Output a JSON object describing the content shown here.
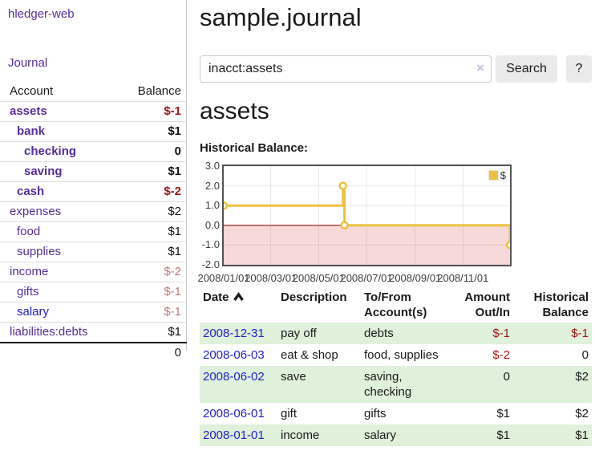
{
  "app": {
    "title": "hledger-web"
  },
  "sidebar": {
    "journal_link": "Journal",
    "headers": {
      "account": "Account",
      "balance": "Balance"
    },
    "accounts": [
      {
        "label": "assets",
        "balance": "$-1",
        "depth": 1,
        "emph": true,
        "balance_color": "negative-strong",
        "link_color": "purple"
      },
      {
        "label": "bank",
        "balance": "$1",
        "depth": 2,
        "emph": true,
        "balance_color": "normal",
        "link_color": "purple"
      },
      {
        "label": "checking",
        "balance": "0",
        "depth": 3,
        "emph": true,
        "balance_color": "normal",
        "link_color": "purple"
      },
      {
        "label": "saving",
        "balance": "$1",
        "depth": 3,
        "emph": true,
        "balance_color": "normal",
        "link_color": "purple"
      },
      {
        "label": "cash",
        "balance": "$-2",
        "depth": 2,
        "emph": true,
        "balance_color": "negative-strong",
        "link_color": "purple"
      },
      {
        "label": "expenses",
        "balance": "$2",
        "depth": 1,
        "emph": false,
        "balance_color": "normal",
        "link_color": "purple"
      },
      {
        "label": "food",
        "balance": "$1",
        "depth": 2,
        "emph": false,
        "balance_color": "normal",
        "link_color": "purple"
      },
      {
        "label": "supplies",
        "balance": "$1",
        "depth": 2,
        "emph": false,
        "balance_color": "normal",
        "link_color": "purple"
      },
      {
        "label": "income",
        "balance": "$-2",
        "depth": 1,
        "emph": false,
        "balance_color": "negative-muted",
        "link_color": "purple"
      },
      {
        "label": "gifts",
        "balance": "$-1",
        "depth": 2,
        "emph": false,
        "balance_color": "negative-muted",
        "link_color": "purple"
      },
      {
        "label": "salary",
        "balance": "$-1",
        "depth": 2,
        "emph": false,
        "balance_color": "negative-muted",
        "link_color": "blue"
      },
      {
        "label": "liabilities:debts",
        "balance": "$1",
        "depth": 1,
        "emph": false,
        "balance_color": "normal",
        "link_color": "purple"
      }
    ],
    "total": "0"
  },
  "main": {
    "title": "sample.journal",
    "search": {
      "value": "inacct:assets",
      "clear_icon": "×",
      "search_label": "Search",
      "help_label": "?"
    },
    "account_heading": "assets",
    "chart_label": "Historical Balance:"
  },
  "chart_data": {
    "type": "line",
    "title": "Historical Balance",
    "step": true,
    "series": [
      {
        "name": "$",
        "color": "#edc240",
        "points": [
          [
            "2008-01-01",
            1
          ],
          [
            "2008-06-01",
            2
          ],
          [
            "2008-06-03",
            0
          ],
          [
            "2008-12-31",
            -1
          ]
        ]
      }
    ],
    "ylim": [
      -2,
      3
    ],
    "yticks": [
      3.0,
      2.0,
      1.0,
      0.0,
      -1.0,
      -2.0
    ],
    "xticks": [
      "2008/01/01",
      "2008/03/01",
      "2008/05/01",
      "2008/07/01",
      "2008/09/01",
      "2008/11/01"
    ],
    "xrange": [
      "2008-01-01",
      "2008-12-31"
    ],
    "legend": {
      "position": "top-right",
      "label": "$"
    },
    "grid": true,
    "negative_region_color": "#f8d9d9",
    "zero_line_color": "#8c1a1a"
  },
  "register": {
    "headers": [
      "Date",
      "Description",
      "To/From Account(s)",
      "Amount Out/In",
      "Historical Balance"
    ],
    "rows": [
      {
        "date": "2008-12-31",
        "description": "pay off",
        "accounts": "debts",
        "amount": "$-1",
        "amount_neg": true,
        "balance": "$-1",
        "balance_neg": true,
        "shade": true
      },
      {
        "date": "2008-06-03",
        "description": "eat & shop",
        "accounts": "food, supplies",
        "amount": "$-2",
        "amount_neg": true,
        "balance": "0",
        "balance_neg": false,
        "shade": false
      },
      {
        "date": "2008-06-02",
        "description": "save",
        "accounts": "saving, checking",
        "amount": "0",
        "amount_neg": false,
        "balance": "$2",
        "balance_neg": false,
        "shade": true
      },
      {
        "date": "2008-06-01",
        "description": "gift",
        "accounts": "gifts",
        "amount": "$1",
        "amount_neg": false,
        "balance": "$2",
        "balance_neg": false,
        "shade": false
      },
      {
        "date": "2008-01-01",
        "description": "income",
        "accounts": "salary",
        "amount": "$1",
        "amount_neg": false,
        "balance": "$1",
        "balance_neg": false,
        "shade": true
      }
    ]
  }
}
